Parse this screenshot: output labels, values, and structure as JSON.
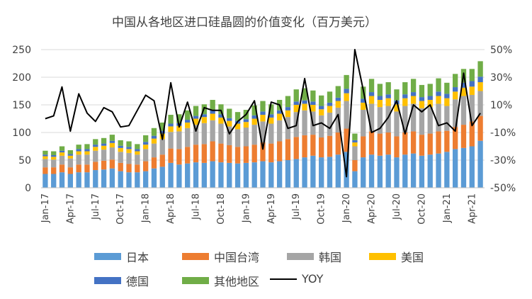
{
  "chart_data": {
    "type": "bar",
    "stacked": true,
    "title": "中国从各地区进口硅晶圆的价值变化（百万美元）",
    "categories": [
      "Jan-17",
      "Feb-17",
      "Mar-17",
      "Apr-17",
      "May-17",
      "Jun-17",
      "Jul-17",
      "Aug-17",
      "Sep-17",
      "Oct-17",
      "Nov-17",
      "Dec-17",
      "Jan-18",
      "Feb-18",
      "Mar-18",
      "Apr-18",
      "May-18",
      "Jun-18",
      "Jul-18",
      "Aug-18",
      "Sep-18",
      "Oct-18",
      "Nov-18",
      "Dec-18",
      "Jan-19",
      "Feb-19",
      "Mar-19",
      "Apr-19",
      "May-19",
      "Jun-19",
      "Jul-19",
      "Aug-19",
      "Sep-19",
      "Oct-19",
      "Nov-19",
      "Dec-19",
      "Jan-20",
      "Feb-20",
      "Mar-20",
      "Apr-20",
      "May-20",
      "Jun-20",
      "Jul-20",
      "Aug-20",
      "Sep-20",
      "Oct-20",
      "Nov-20",
      "Dec-20",
      "Jan-21",
      "Feb-21",
      "Mar-21",
      "Apr-21",
      "May-21"
    ],
    "x_tick_labels": [
      "Jan-17",
      "Apr-17",
      "Jul-17",
      "Oct-17",
      "Jan-18",
      "Apr-18",
      "Jul-18",
      "Oct-18",
      "Jan-19",
      "Apr-19",
      "Jul-19",
      "Oct-19",
      "Jan-20",
      "Apr-20",
      "Jul-20",
      "Oct-20",
      "Jan-21",
      "Apr-21"
    ],
    "y_left": {
      "ticks": [
        "0",
        "50",
        "100",
        "150",
        "200",
        "250"
      ],
      "ylim": [
        0,
        250
      ]
    },
    "y_right": {
      "ticks": [
        "-50%",
        "-30%",
        "-10%",
        "10%",
        "30%",
        "50%"
      ],
      "ylim": [
        -50,
        50
      ]
    },
    "series": [
      {
        "name": "日本",
        "color": "#5B9BD5",
        "values": [
          25,
          25,
          28,
          25,
          28,
          28,
          32,
          33,
          35,
          30,
          28,
          28,
          30,
          35,
          38,
          45,
          42,
          44,
          46,
          45,
          48,
          46,
          45,
          44,
          45,
          46,
          48,
          46,
          48,
          50,
          52,
          55,
          58,
          55,
          56,
          60,
          65,
          30,
          55,
          60,
          58,
          60,
          55,
          60,
          62,
          58,
          60,
          62,
          65,
          70,
          72,
          75,
          85
        ]
      },
      {
        "name": "中国台湾",
        "color": "#ED7D31",
        "values": [
          12,
          12,
          14,
          12,
          14,
          14,
          15,
          16,
          16,
          15,
          15,
          14,
          18,
          20,
          22,
          26,
          28,
          30,
          32,
          34,
          36,
          34,
          32,
          30,
          30,
          32,
          34,
          34,
          36,
          38,
          40,
          40,
          38,
          36,
          38,
          40,
          42,
          20,
          38,
          42,
          40,
          40,
          38,
          40,
          40,
          38,
          38,
          40,
          38,
          40,
          42,
          45,
          45
        ]
      },
      {
        "name": "韩国",
        "color": "#A5A5A5",
        "values": [
          15,
          14,
          16,
          16,
          18,
          18,
          20,
          20,
          22,
          20,
          20,
          18,
          22,
          25,
          28,
          30,
          32,
          34,
          36,
          38,
          38,
          36,
          34,
          32,
          34,
          36,
          38,
          36,
          38,
          40,
          45,
          45,
          42,
          40,
          42,
          45,
          50,
          25,
          48,
          50,
          48,
          48,
          45,
          48,
          50,
          48,
          48,
          50,
          45,
          50,
          52,
          48,
          45
        ]
      },
      {
        "name": "美国",
        "color": "#FFC000",
        "values": [
          5,
          5,
          6,
          5,
          6,
          6,
          7,
          7,
          8,
          7,
          7,
          6,
          8,
          9,
          10,
          10,
          10,
          10,
          11,
          11,
          12,
          11,
          10,
          10,
          10,
          11,
          12,
          11,
          12,
          12,
          13,
          12,
          12,
          11,
          12,
          12,
          14,
          7,
          13,
          14,
          13,
          14,
          13,
          14,
          14,
          13,
          13,
          14,
          14,
          14,
          15,
          15,
          16
        ]
      },
      {
        "name": "德国",
        "color": "#4472C4",
        "values": [
          3,
          3,
          3,
          3,
          4,
          4,
          4,
          4,
          4,
          4,
          4,
          4,
          5,
          5,
          5,
          5,
          5,
          5,
          5,
          5,
          6,
          6,
          5,
          5,
          5,
          6,
          6,
          6,
          6,
          6,
          6,
          6,
          6,
          6,
          6,
          6,
          8,
          4,
          7,
          7,
          7,
          7,
          7,
          7,
          7,
          7,
          7,
          8,
          8,
          8,
          9,
          10,
          10
        ]
      },
      {
        "name": "其他地区",
        "color": "#70AD47",
        "values": [
          7,
          7,
          8,
          7,
          8,
          9,
          10,
          10,
          11,
          10,
          10,
          9,
          12,
          14,
          15,
          16,
          16,
          17,
          18,
          18,
          19,
          18,
          17,
          16,
          17,
          18,
          19,
          18,
          19,
          20,
          22,
          22,
          20,
          19,
          20,
          21,
          25,
          12,
          22,
          24,
          22,
          22,
          20,
          22,
          24,
          22,
          22,
          24,
          20,
          24,
          25,
          22,
          28
        ]
      },
      {
        "name": "YOY",
        "color": "#000000",
        "axis": "right",
        "values": [
          0,
          2,
          23,
          -9,
          18,
          4,
          -2,
          8,
          5,
          -6,
          -5,
          6,
          17,
          13,
          -15,
          26,
          -6,
          12,
          -9,
          8,
          6,
          6,
          -11,
          -2,
          3,
          13,
          -22,
          12,
          10,
          -7,
          -5,
          29,
          -5,
          -3,
          -7,
          3,
          -42,
          50,
          21,
          -10,
          -7,
          1,
          13,
          -11,
          10,
          5,
          10,
          -5,
          -3,
          -9,
          33,
          -5,
          4
        ]
      }
    ]
  }
}
